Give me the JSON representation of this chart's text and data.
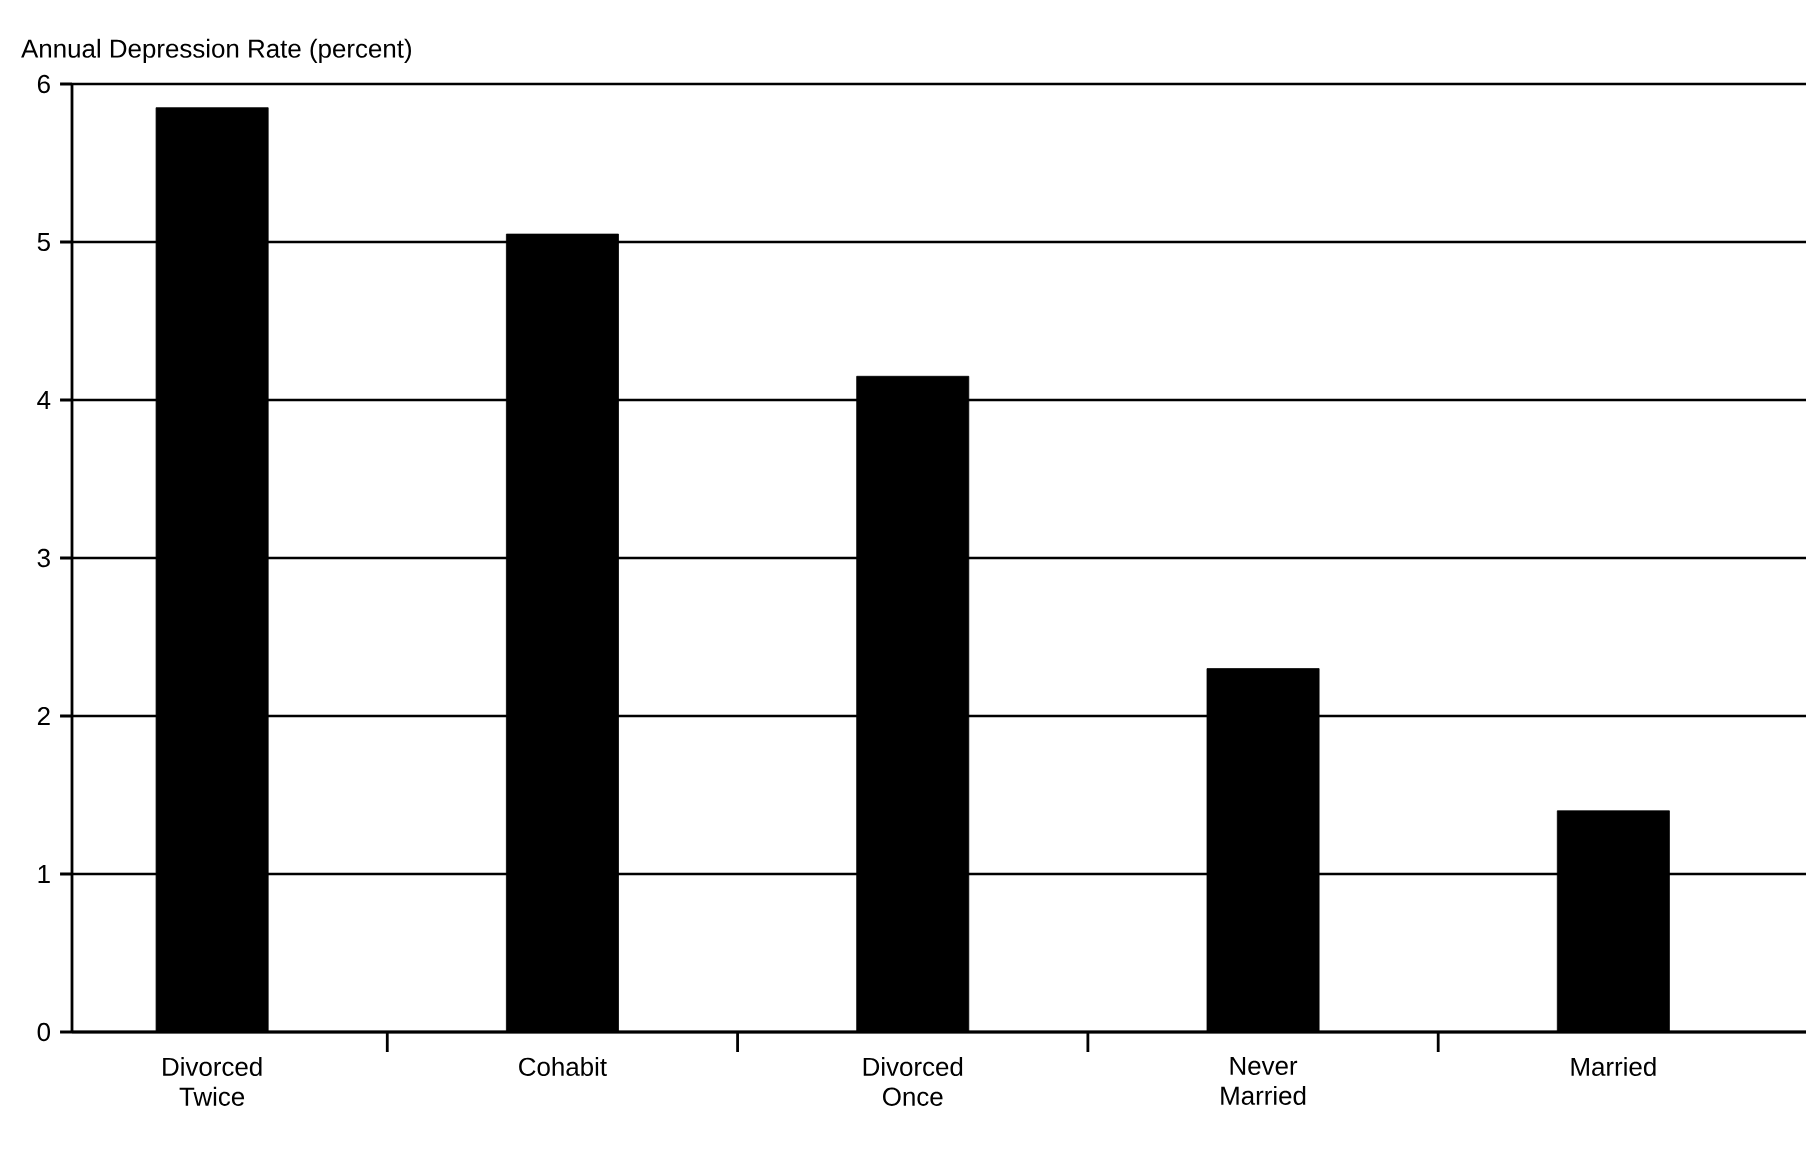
{
  "chart_data": {
    "type": "bar",
    "ylabel": "Annual Depression Rate (percent)",
    "categories": [
      "Divorced Twice",
      "Cohabit",
      "Divorced Once",
      "Never Married",
      "Married"
    ],
    "values": [
      5.85,
      5.05,
      4.15,
      2.3,
      1.4
    ],
    "color": "#000000",
    "ylim": [
      0,
      6
    ],
    "yticks": [
      0,
      1,
      2,
      3,
      4,
      5,
      6
    ],
    "grid": "y"
  }
}
